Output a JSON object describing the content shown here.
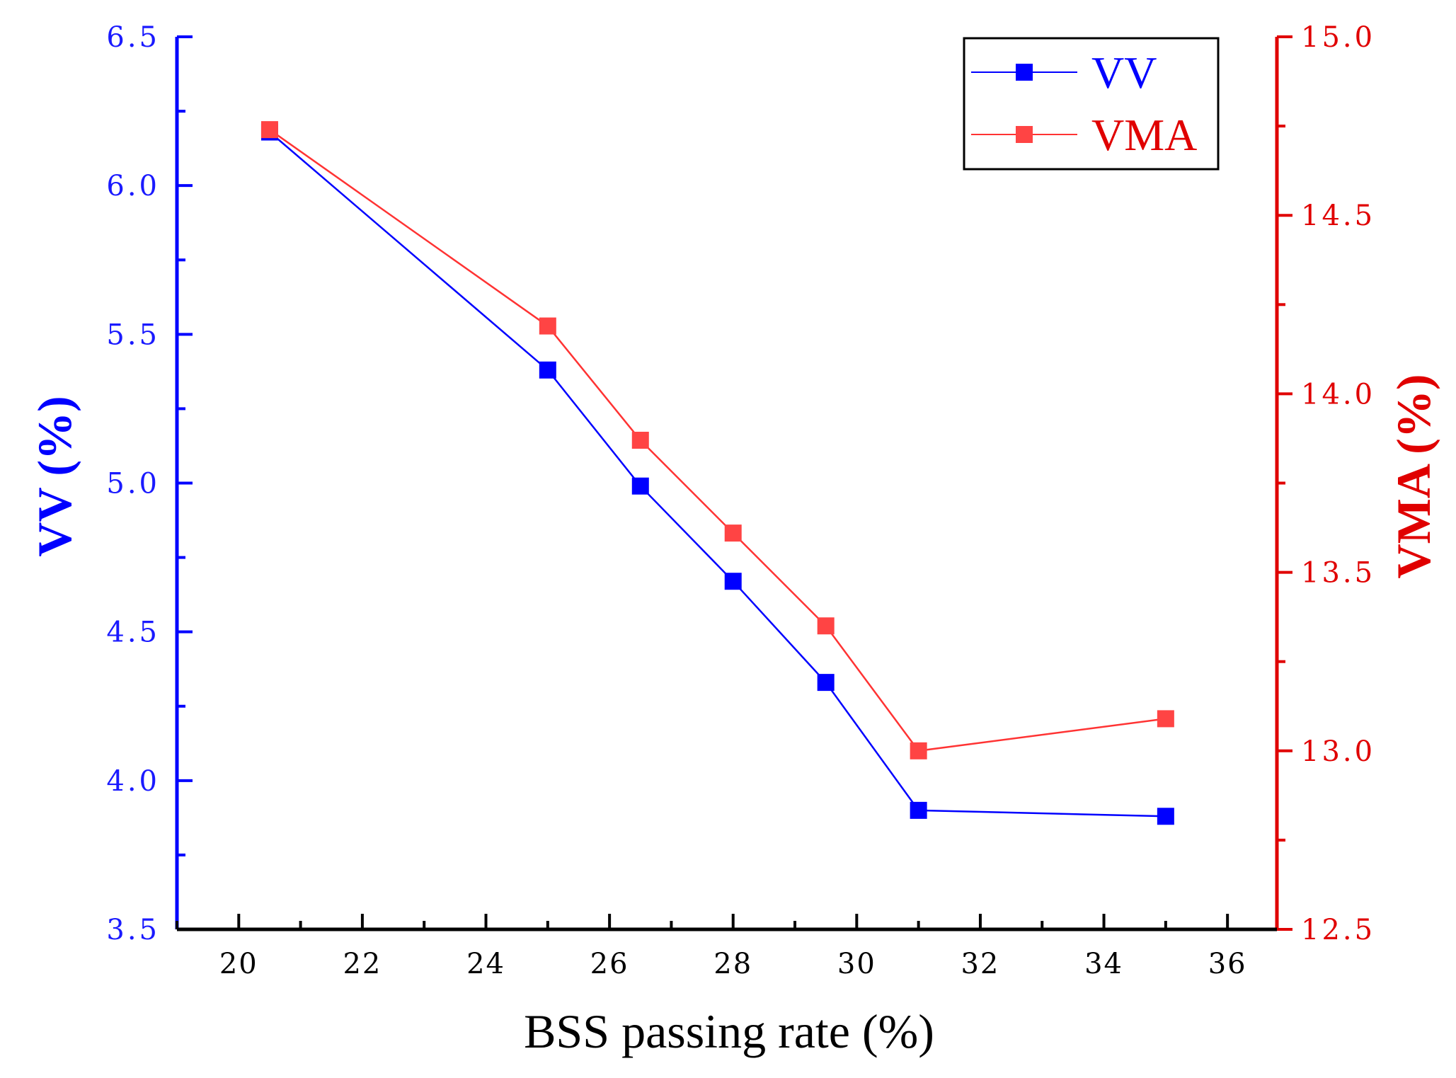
{
  "chart_data": {
    "type": "line",
    "title": "",
    "xlabel": "BSS passing rate (%)",
    "x_ticks": [
      "20",
      "22",
      "24",
      "26",
      "28",
      "30",
      "32",
      "34",
      "36"
    ],
    "xlim": [
      19,
      36.8
    ],
    "x": [
      20.5,
      25,
      26.5,
      28,
      29.5,
      31,
      35
    ],
    "y_left": {
      "label": "VV (%)",
      "ylim": [
        3.5,
        6.5
      ],
      "ticks": [
        "3.5",
        "4.0",
        "4.5",
        "5.0",
        "5.5",
        "6.0",
        "6.5"
      ],
      "color": "#0000ff"
    },
    "y_right": {
      "label": "VMA (%)",
      "ylim": [
        12.5,
        15.0
      ],
      "ticks": [
        "12.5",
        "13.0",
        "13.5",
        "14.0",
        "14.5",
        "15.0"
      ],
      "color": "#e00000"
    },
    "series": [
      {
        "name": "VV",
        "axis": "left",
        "color": "#0000ff",
        "values": [
          6.18,
          5.38,
          4.99,
          4.67,
          4.33,
          3.9,
          3.88
        ]
      },
      {
        "name": "VMA",
        "axis": "right",
        "color": "#ff3333",
        "values": [
          14.74,
          14.19,
          13.87,
          13.61,
          13.35,
          13.0,
          13.09
        ]
      }
    ],
    "legend": {
      "position": "top-right",
      "entries": [
        "VV",
        "VMA"
      ]
    },
    "grid": false
  }
}
